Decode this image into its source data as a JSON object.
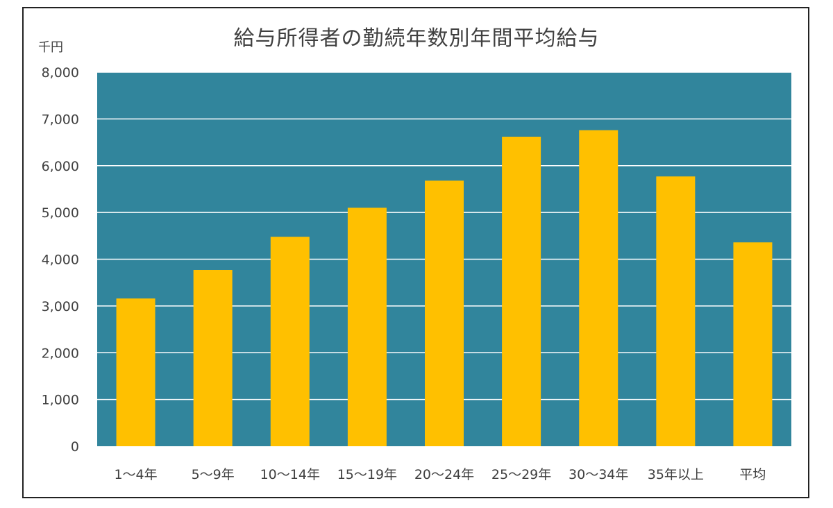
{
  "chart_data": {
    "type": "bar",
    "title": "給与所得者の勤続年数別年間平均給与",
    "unit_label": "千円",
    "categories": [
      "1～4年",
      "5～9年",
      "10～14年",
      "15～19年",
      "20～24年",
      "25～29年",
      "30～34年",
      "35年以上",
      "平均"
    ],
    "values": [
      3160,
      3770,
      4480,
      5100,
      5680,
      6620,
      6760,
      5770,
      4360
    ],
    "ylim": [
      0,
      8000
    ],
    "yticks": [
      0,
      1000,
      2000,
      3000,
      4000,
      5000,
      6000,
      7000,
      8000
    ],
    "ytick_labels": [
      "0",
      "1,000",
      "2,000",
      "3,000",
      "4,000",
      "5,000",
      "6,000",
      "7,000",
      "8,000"
    ],
    "grid": true,
    "colors": {
      "bar": "#FFC000",
      "plot_background": "#31859C",
      "gridline": "#FFFFFF"
    }
  }
}
